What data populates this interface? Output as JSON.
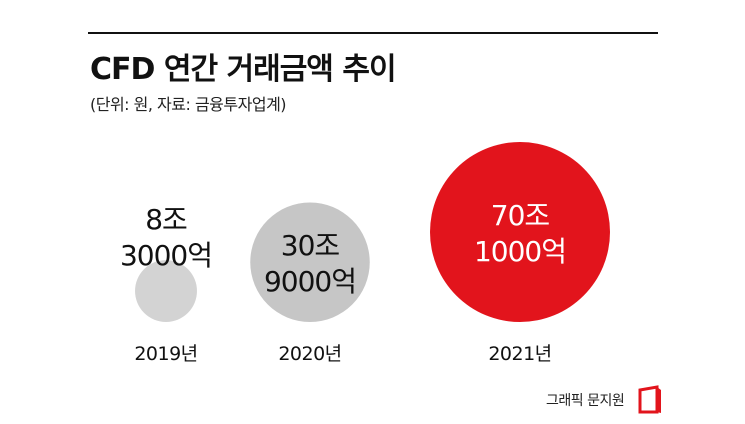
{
  "title": "CFD 연간 거래금액 추이",
  "subtitle": "(단위: 원, 자료: 금융투자업계)",
  "credit": "그래픽 문지원",
  "colors": {
    "small": "#d3d3d3",
    "mid": "#c6c6c6",
    "large": "#e2141c",
    "text": "#111111",
    "text_on_red": "#ffffff"
  },
  "chart_data": {
    "type": "bubble",
    "title": "CFD 연간 거래금액 추이",
    "subtitle": "(단위: 원, 자료: 금융투자업계)",
    "unit": "원",
    "categories": [
      "2019년",
      "2020년",
      "2021년"
    ],
    "values_trillion_won": [
      8.3,
      30.9,
      70.1
    ],
    "labels": [
      [
        "8조",
        "3000억"
      ],
      [
        "30조",
        "9000억"
      ],
      [
        "70조",
        "1000억"
      ]
    ]
  }
}
